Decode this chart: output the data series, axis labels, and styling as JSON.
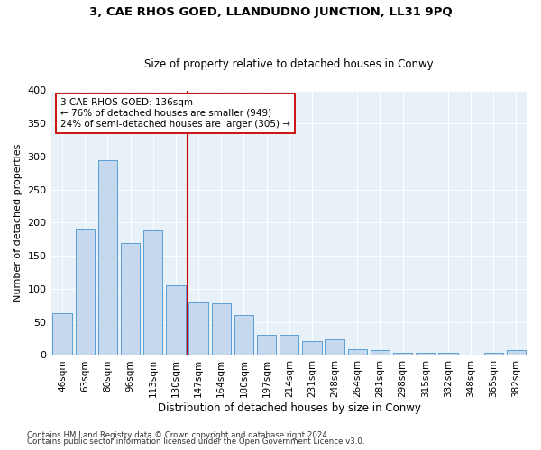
{
  "title1": "3, CAE RHOS GOED, LLANDUDNO JUNCTION, LL31 9PQ",
  "title2": "Size of property relative to detached houses in Conwy",
  "xlabel": "Distribution of detached houses by size in Conwy",
  "ylabel": "Number of detached properties",
  "footer1": "Contains HM Land Registry data © Crown copyright and database right 2024.",
  "footer2": "Contains public sector information licensed under the Open Government Licence v3.0.",
  "categories": [
    "46sqm",
    "63sqm",
    "80sqm",
    "96sqm",
    "113sqm",
    "130sqm",
    "147sqm",
    "164sqm",
    "180sqm",
    "197sqm",
    "214sqm",
    "231sqm",
    "248sqm",
    "264sqm",
    "281sqm",
    "298sqm",
    "315sqm",
    "332sqm",
    "348sqm",
    "365sqm",
    "382sqm"
  ],
  "values": [
    63,
    190,
    295,
    170,
    188,
    105,
    80,
    78,
    60,
    31,
    31,
    21,
    24,
    9,
    7,
    4,
    3,
    3,
    0,
    4,
    7
  ],
  "bar_color": "#c5d8ed",
  "bar_edge_color": "#5a9fd4",
  "annotation_line1": "3 CAE RHOS GOED: 136sqm",
  "annotation_line2": "← 76% of detached houses are smaller (949)",
  "annotation_line3": "24% of semi-detached houses are larger (305) →",
  "vline_color": "#cc0000",
  "annotation_box_color": "#ffffff",
  "annotation_box_edge": "#cc0000",
  "ylim": [
    0,
    400
  ],
  "yticks": [
    0,
    50,
    100,
    150,
    200,
    250,
    300,
    350,
    400
  ],
  "plot_bg_color": "#e8f0f8",
  "vline_x_index": 5.5
}
